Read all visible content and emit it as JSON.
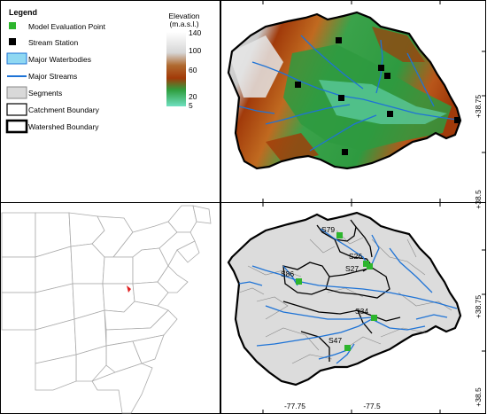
{
  "legend": {
    "title": "Legend",
    "items": [
      {
        "label": "Model Evaluation Point",
        "symbol": "green-square",
        "color": "#2db52d"
      },
      {
        "label": "Stream Station",
        "symbol": "black-square",
        "color": "#000000"
      },
      {
        "label": "Major Waterbodies",
        "symbol": "waterbody",
        "color": "#8fd8f2"
      },
      {
        "label": "Major Streams",
        "symbol": "stream-line",
        "color": "#1e73d6"
      },
      {
        "label": "Segments",
        "symbol": "segment-box",
        "color": "#d9d9d9"
      },
      {
        "label": "Catchment Boundary",
        "symbol": "thin-box",
        "color": "#000000"
      },
      {
        "label": "Watershed Boundary",
        "symbol": "thick-box",
        "color": "#000000"
      }
    ]
  },
  "elevation_legend": {
    "title_line1": "Elevation",
    "title_line2": "(m.a.s.l.)",
    "ticks": [
      "140",
      "100",
      "60",
      "20",
      "5"
    ]
  },
  "axes": {
    "lat_labels": [
      "+38.75",
      "+38.5",
      "+38.75",
      "+38.5"
    ],
    "lon_labels": [
      "-77.75",
      "-77.5"
    ]
  },
  "segments": [
    {
      "label": "S79"
    },
    {
      "label": "S26"
    },
    {
      "label": "S27"
    },
    {
      "label": "S86"
    },
    {
      "label": "S34"
    },
    {
      "label": "S47"
    }
  ],
  "colors": {
    "low_elevation": "#62d6b0",
    "mid_elevation": "#1f9e4a",
    "high_mid_elevation": "#a33a08",
    "highest_elevation": "#ffffff",
    "segment_fill": "#dcdcdc",
    "stream": "#1e73d6",
    "eval_point": "#2db52d",
    "state_lines": "#aaaaaa",
    "inset_marker": "#e02020"
  }
}
